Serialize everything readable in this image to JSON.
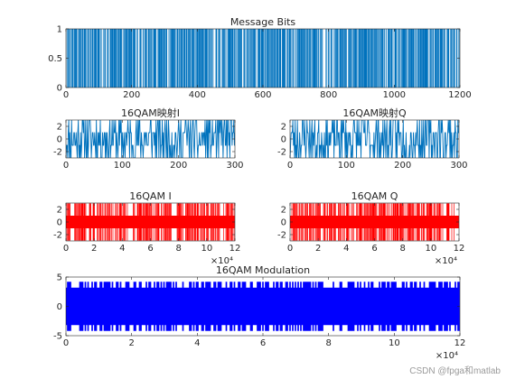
{
  "watermark": "CSDN @fpga和matlab",
  "colors": {
    "bits": "#0072BD",
    "iq": "#FF0000",
    "modulation": "#0000FF",
    "axis": "#262626"
  },
  "chart_data": [
    {
      "id": "bits",
      "type": "bar",
      "title": "Message Bits",
      "xlim": [
        0,
        1200
      ],
      "ylim": [
        0,
        1
      ],
      "xticks": [
        0,
        200,
        400,
        600,
        800,
        1000,
        1200
      ],
      "yticks": [
        0,
        0.5,
        1
      ],
      "ytick_labels": [
        "0",
        "0.5",
        "1"
      ],
      "exponent": "",
      "color": "bits",
      "levels": [
        0,
        1
      ],
      "n": 1200,
      "seed": 7,
      "values": "1200 random binary values in {0,1} (dense vertical bars); individual values not readable"
    },
    {
      "id": "qam_i_map",
      "type": "line",
      "style": "stairs",
      "title": "16QAM映射I",
      "xlim": [
        0,
        300
      ],
      "ylim": [
        -3,
        3
      ],
      "xticks": [
        0,
        100,
        200,
        300
      ],
      "yticks": [
        -2,
        0,
        2
      ],
      "exponent": "",
      "color": "bits",
      "levels": [
        -3,
        -1,
        1,
        3
      ],
      "n": 300,
      "seed": 11,
      "values": "300 symbols drawn from {-3,-1,1,3}"
    },
    {
      "id": "qam_q_map",
      "type": "line",
      "style": "stairs",
      "title": "16QAM映射Q",
      "xlim": [
        0,
        300
      ],
      "ylim": [
        -3,
        3
      ],
      "xticks": [
        0,
        100,
        200,
        300
      ],
      "yticks": [
        -2,
        0,
        2
      ],
      "exponent": "",
      "color": "bits",
      "levels": [
        -3,
        -1,
        1,
        3
      ],
      "n": 300,
      "seed": 23,
      "values": "300 symbols drawn from {-3,-1,1,3}"
    },
    {
      "id": "qam_i",
      "type": "line",
      "style": "dense",
      "title": "16QAM I",
      "xlim": [
        0,
        12
      ],
      "ylim": [
        -3,
        3
      ],
      "xticks": [
        0,
        2,
        4,
        6,
        8,
        10,
        12
      ],
      "yticks": [
        -2,
        0,
        2
      ],
      "exponent": "×10⁴",
      "x_unit_scale": 10000,
      "color": "iq",
      "levels": [
        -3,
        -1,
        1,
        3
      ],
      "n": 300,
      "seed": 11,
      "values": "upsampled carrier-modulated I signal over 0–1.2e5 samples, amplitude within ±3"
    },
    {
      "id": "qam_q",
      "type": "line",
      "style": "dense",
      "title": "16QAM Q",
      "xlim": [
        0,
        12
      ],
      "ylim": [
        -3,
        3
      ],
      "xticks": [
        0,
        2,
        4,
        6,
        8,
        10,
        12
      ],
      "yticks": [
        -2,
        0,
        2
      ],
      "exponent": "×10⁴",
      "x_unit_scale": 10000,
      "color": "iq",
      "levels": [
        -3,
        -1,
        1,
        3
      ],
      "n": 300,
      "seed": 23,
      "values": "upsampled carrier-modulated Q signal over 0–1.2e5 samples, amplitude within ±3"
    },
    {
      "id": "modulation",
      "type": "line",
      "style": "dense",
      "title": "16QAM Modulation",
      "xlim": [
        0,
        12
      ],
      "ylim": [
        -5,
        5
      ],
      "xticks": [
        0,
        2,
        4,
        6,
        8,
        10,
        12
      ],
      "yticks": [
        -5,
        0,
        5
      ],
      "exponent": "×10⁴",
      "x_unit_scale": 10000,
      "color": "modulation",
      "levels": [
        -4.2,
        -3.2,
        3.2,
        4.2
      ],
      "n": 300,
      "seed": 37,
      "values": "16QAM modulated waveform over 0–1.2e5 samples, amplitude within about ±4.2"
    }
  ]
}
